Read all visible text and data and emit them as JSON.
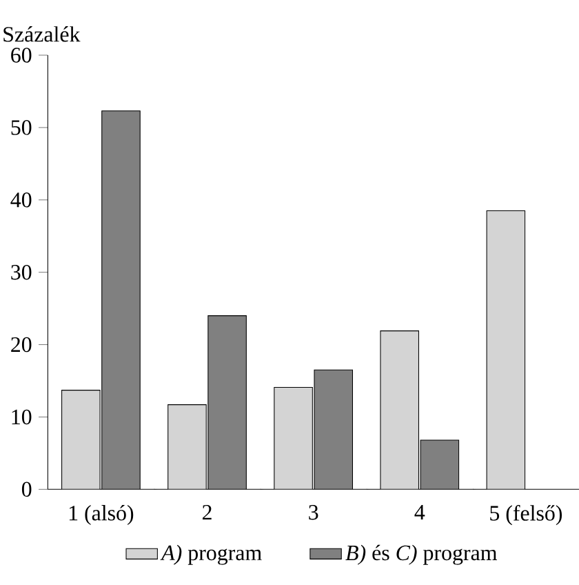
{
  "chart_data": {
    "type": "bar",
    "ylabel": "Százalék",
    "categories": [
      "1 (alsó)",
      "2",
      "3",
      "4",
      "5 (felső)"
    ],
    "series": [
      {
        "name": "*A)* program",
        "color": "#d4d4d4",
        "values": [
          13.7,
          11.7,
          14.1,
          21.9,
          38.5
        ]
      },
      {
        "name": "*B)* és *C)* program",
        "color": "#808080",
        "values": [
          52.3,
          24.0,
          16.5,
          6.8,
          null
        ]
      }
    ],
    "ylim": [
      0,
      60
    ],
    "yticks": [
      0,
      10,
      20,
      30,
      40,
      50,
      60
    ],
    "legend": "bottom",
    "grid": false
  }
}
